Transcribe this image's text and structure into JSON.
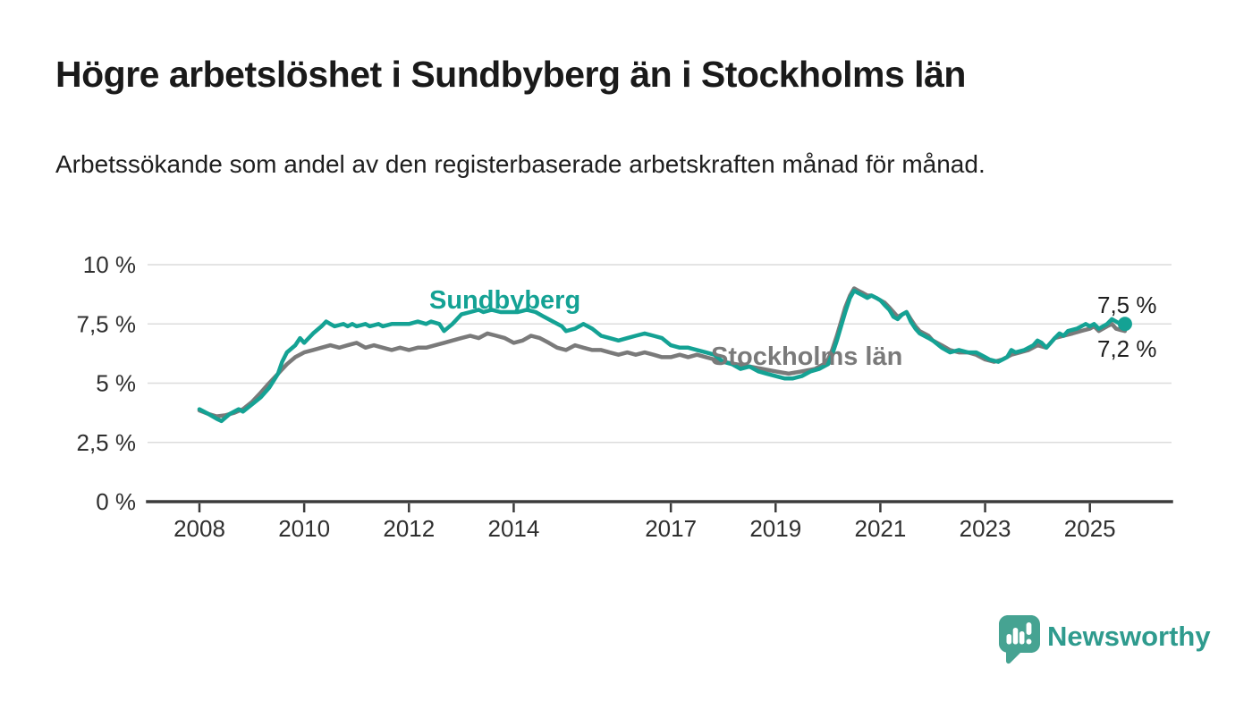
{
  "page": {
    "title": "Högre arbetslöshet i Sundbyberg än i Stockholms län",
    "subtitle": "Arbetssökande som andel av den registerbaserade arbetskraften månad för månad."
  },
  "logo": {
    "name": "Newsworthy",
    "icon": "newsworthy-speech-bubble-bar-chart-icon",
    "bubble_color": "#46a392",
    "text_color": "#2f9b8e"
  },
  "chart_data": {
    "type": "line",
    "title": "",
    "xlabel": "",
    "ylabel": "",
    "unit": "%",
    "grid": true,
    "x_axis": {
      "range": [
        2007.0,
        2026.6
      ],
      "ticks": [
        {
          "v": 2008,
          "label": "2008"
        },
        {
          "v": 2010,
          "label": "2010"
        },
        {
          "v": 2012,
          "label": "2012"
        },
        {
          "v": 2014,
          "label": "2014"
        },
        {
          "v": 2017,
          "label": "2017"
        },
        {
          "v": 2019,
          "label": "2019"
        },
        {
          "v": 2021,
          "label": "2021"
        },
        {
          "v": 2023,
          "label": "2023"
        },
        {
          "v": 2025,
          "label": "2025"
        }
      ]
    },
    "y_axis": {
      "range": [
        0,
        10
      ],
      "ticks": [
        {
          "v": 0,
          "label": "0 %"
        },
        {
          "v": 2.5,
          "label": "2,5 %"
        },
        {
          "v": 5,
          "label": "5 %"
        },
        {
          "v": 7.5,
          "label": "7,5 %"
        },
        {
          "v": 10,
          "label": "10 %"
        }
      ]
    },
    "colors": {
      "gridline": "#dcdcdc",
      "axis": "#3b3b3b",
      "tick_text": "#2f2f2f"
    },
    "series": [
      {
        "name": "Sundbyberg",
        "color": "#14a294",
        "end_label": "7,5 %",
        "end_value": 7.5,
        "end_dot": true,
        "points": [
          [
            2008.0,
            3.9
          ],
          [
            2008.17,
            3.7
          ],
          [
            2008.33,
            3.5
          ],
          [
            2008.42,
            3.4
          ],
          [
            2008.58,
            3.7
          ],
          [
            2008.75,
            3.9
          ],
          [
            2008.83,
            3.8
          ],
          [
            2009.0,
            4.1
          ],
          [
            2009.17,
            4.4
          ],
          [
            2009.33,
            4.8
          ],
          [
            2009.5,
            5.4
          ],
          [
            2009.58,
            5.9
          ],
          [
            2009.67,
            6.3
          ],
          [
            2009.83,
            6.6
          ],
          [
            2009.92,
            6.9
          ],
          [
            2010.0,
            6.7
          ],
          [
            2010.17,
            7.1
          ],
          [
            2010.33,
            7.4
          ],
          [
            2010.42,
            7.6
          ],
          [
            2010.5,
            7.5
          ],
          [
            2010.58,
            7.4
          ],
          [
            2010.75,
            7.5
          ],
          [
            2010.83,
            7.4
          ],
          [
            2010.92,
            7.5
          ],
          [
            2011.0,
            7.4
          ],
          [
            2011.17,
            7.5
          ],
          [
            2011.25,
            7.4
          ],
          [
            2011.42,
            7.5
          ],
          [
            2011.5,
            7.4
          ],
          [
            2011.67,
            7.5
          ],
          [
            2011.83,
            7.5
          ],
          [
            2012.0,
            7.5
          ],
          [
            2012.17,
            7.6
          ],
          [
            2012.33,
            7.5
          ],
          [
            2012.42,
            7.6
          ],
          [
            2012.58,
            7.5
          ],
          [
            2012.67,
            7.2
          ],
          [
            2012.83,
            7.5
          ],
          [
            2013.0,
            7.9
          ],
          [
            2013.17,
            8.0
          ],
          [
            2013.33,
            8.1
          ],
          [
            2013.42,
            8.0
          ],
          [
            2013.58,
            8.1
          ],
          [
            2013.75,
            8.0
          ],
          [
            2013.92,
            8.0
          ],
          [
            2014.08,
            8.0
          ],
          [
            2014.25,
            8.1
          ],
          [
            2014.42,
            8.0
          ],
          [
            2014.58,
            7.8
          ],
          [
            2014.75,
            7.6
          ],
          [
            2014.92,
            7.4
          ],
          [
            2015.0,
            7.2
          ],
          [
            2015.17,
            7.3
          ],
          [
            2015.33,
            7.5
          ],
          [
            2015.5,
            7.3
          ],
          [
            2015.67,
            7.0
          ],
          [
            2015.83,
            6.9
          ],
          [
            2016.0,
            6.8
          ],
          [
            2016.17,
            6.9
          ],
          [
            2016.33,
            7.0
          ],
          [
            2016.5,
            7.1
          ],
          [
            2016.67,
            7.0
          ],
          [
            2016.83,
            6.9
          ],
          [
            2017.0,
            6.6
          ],
          [
            2017.17,
            6.5
          ],
          [
            2017.33,
            6.5
          ],
          [
            2017.5,
            6.4
          ],
          [
            2017.67,
            6.3
          ],
          [
            2017.83,
            6.2
          ],
          [
            2018.0,
            5.9
          ],
          [
            2018.17,
            5.8
          ],
          [
            2018.33,
            5.6
          ],
          [
            2018.5,
            5.7
          ],
          [
            2018.67,
            5.5
          ],
          [
            2018.83,
            5.4
          ],
          [
            2019.0,
            5.3
          ],
          [
            2019.17,
            5.2
          ],
          [
            2019.33,
            5.2
          ],
          [
            2019.5,
            5.3
          ],
          [
            2019.67,
            5.5
          ],
          [
            2019.83,
            5.6
          ],
          [
            2020.0,
            5.8
          ],
          [
            2020.08,
            6.2
          ],
          [
            2020.17,
            6.8
          ],
          [
            2020.25,
            7.4
          ],
          [
            2020.33,
            8.0
          ],
          [
            2020.42,
            8.6
          ],
          [
            2020.5,
            8.9
          ],
          [
            2020.58,
            8.8
          ],
          [
            2020.67,
            8.7
          ],
          [
            2020.75,
            8.6
          ],
          [
            2020.83,
            8.7
          ],
          [
            2020.92,
            8.6
          ],
          [
            2021.0,
            8.5
          ],
          [
            2021.08,
            8.3
          ],
          [
            2021.17,
            8.1
          ],
          [
            2021.25,
            7.8
          ],
          [
            2021.33,
            7.7
          ],
          [
            2021.42,
            7.9
          ],
          [
            2021.5,
            8.0
          ],
          [
            2021.58,
            7.6
          ],
          [
            2021.67,
            7.3
          ],
          [
            2021.75,
            7.1
          ],
          [
            2021.92,
            6.9
          ],
          [
            2022.0,
            6.8
          ],
          [
            2022.17,
            6.5
          ],
          [
            2022.33,
            6.3
          ],
          [
            2022.5,
            6.4
          ],
          [
            2022.67,
            6.3
          ],
          [
            2022.83,
            6.3
          ],
          [
            2023.0,
            6.1
          ],
          [
            2023.08,
            6.0
          ],
          [
            2023.25,
            5.9
          ],
          [
            2023.42,
            6.1
          ],
          [
            2023.5,
            6.4
          ],
          [
            2023.58,
            6.3
          ],
          [
            2023.75,
            6.4
          ],
          [
            2023.92,
            6.6
          ],
          [
            2024.0,
            6.8
          ],
          [
            2024.08,
            6.7
          ],
          [
            2024.17,
            6.5
          ],
          [
            2024.33,
            6.9
          ],
          [
            2024.42,
            7.1
          ],
          [
            2024.5,
            7.0
          ],
          [
            2024.58,
            7.2
          ],
          [
            2024.75,
            7.3
          ],
          [
            2024.92,
            7.5
          ],
          [
            2025.0,
            7.4
          ],
          [
            2025.08,
            7.5
          ],
          [
            2025.17,
            7.3
          ],
          [
            2025.33,
            7.5
          ],
          [
            2025.42,
            7.7
          ],
          [
            2025.5,
            7.6
          ],
          [
            2025.58,
            7.5
          ],
          [
            2025.67,
            7.5
          ]
        ]
      },
      {
        "name": "Stockholms län",
        "color": "#7a7a7a",
        "end_label": "7,2 %",
        "end_value": 7.2,
        "end_dot": false,
        "points": [
          [
            2008.0,
            3.85
          ],
          [
            2008.17,
            3.7
          ],
          [
            2008.33,
            3.6
          ],
          [
            2008.5,
            3.65
          ],
          [
            2008.67,
            3.75
          ],
          [
            2008.83,
            3.9
          ],
          [
            2009.0,
            4.2
          ],
          [
            2009.17,
            4.6
          ],
          [
            2009.33,
            5.0
          ],
          [
            2009.5,
            5.4
          ],
          [
            2009.67,
            5.8
          ],
          [
            2009.83,
            6.1
          ],
          [
            2010.0,
            6.3
          ],
          [
            2010.17,
            6.4
          ],
          [
            2010.33,
            6.5
          ],
          [
            2010.5,
            6.6
          ],
          [
            2010.67,
            6.5
          ],
          [
            2010.83,
            6.6
          ],
          [
            2011.0,
            6.7
          ],
          [
            2011.17,
            6.5
          ],
          [
            2011.33,
            6.6
          ],
          [
            2011.5,
            6.5
          ],
          [
            2011.67,
            6.4
          ],
          [
            2011.83,
            6.5
          ],
          [
            2012.0,
            6.4
          ],
          [
            2012.17,
            6.5
          ],
          [
            2012.33,
            6.5
          ],
          [
            2012.5,
            6.6
          ],
          [
            2012.67,
            6.7
          ],
          [
            2012.83,
            6.8
          ],
          [
            2013.0,
            6.9
          ],
          [
            2013.17,
            7.0
          ],
          [
            2013.33,
            6.9
          ],
          [
            2013.5,
            7.1
          ],
          [
            2013.67,
            7.0
          ],
          [
            2013.83,
            6.9
          ],
          [
            2014.0,
            6.7
          ],
          [
            2014.17,
            6.8
          ],
          [
            2014.33,
            7.0
          ],
          [
            2014.5,
            6.9
          ],
          [
            2014.67,
            6.7
          ],
          [
            2014.83,
            6.5
          ],
          [
            2015.0,
            6.4
          ],
          [
            2015.17,
            6.6
          ],
          [
            2015.33,
            6.5
          ],
          [
            2015.5,
            6.4
          ],
          [
            2015.67,
            6.4
          ],
          [
            2015.83,
            6.3
          ],
          [
            2016.0,
            6.2
          ],
          [
            2016.17,
            6.3
          ],
          [
            2016.33,
            6.2
          ],
          [
            2016.5,
            6.3
          ],
          [
            2016.67,
            6.2
          ],
          [
            2016.83,
            6.1
          ],
          [
            2017.0,
            6.1
          ],
          [
            2017.17,
            6.2
          ],
          [
            2017.33,
            6.1
          ],
          [
            2017.5,
            6.2
          ],
          [
            2017.67,
            6.1
          ],
          [
            2017.83,
            6.0
          ],
          [
            2018.0,
            5.9
          ],
          [
            2018.25,
            5.8
          ],
          [
            2018.5,
            5.7
          ],
          [
            2018.75,
            5.6
          ],
          [
            2019.0,
            5.5
          ],
          [
            2019.25,
            5.4
          ],
          [
            2019.5,
            5.5
          ],
          [
            2019.75,
            5.6
          ],
          [
            2019.92,
            5.8
          ],
          [
            2020.0,
            6.0
          ],
          [
            2020.08,
            6.4
          ],
          [
            2020.17,
            7.0
          ],
          [
            2020.25,
            7.6
          ],
          [
            2020.33,
            8.2
          ],
          [
            2020.42,
            8.7
          ],
          [
            2020.5,
            9.0
          ],
          [
            2020.58,
            8.9
          ],
          [
            2020.67,
            8.8
          ],
          [
            2020.75,
            8.7
          ],
          [
            2020.83,
            8.7
          ],
          [
            2020.92,
            8.6
          ],
          [
            2021.0,
            8.5
          ],
          [
            2021.08,
            8.4
          ],
          [
            2021.17,
            8.2
          ],
          [
            2021.25,
            8.0
          ],
          [
            2021.33,
            7.8
          ],
          [
            2021.42,
            7.9
          ],
          [
            2021.5,
            8.0
          ],
          [
            2021.58,
            7.7
          ],
          [
            2021.67,
            7.4
          ],
          [
            2021.75,
            7.2
          ],
          [
            2021.92,
            7.0
          ],
          [
            2022.0,
            6.8
          ],
          [
            2022.17,
            6.6
          ],
          [
            2022.33,
            6.4
          ],
          [
            2022.5,
            6.3
          ],
          [
            2022.67,
            6.3
          ],
          [
            2022.83,
            6.2
          ],
          [
            2023.0,
            6.0
          ],
          [
            2023.17,
            5.9
          ],
          [
            2023.33,
            6.0
          ],
          [
            2023.5,
            6.2
          ],
          [
            2023.67,
            6.3
          ],
          [
            2023.83,
            6.4
          ],
          [
            2024.0,
            6.6
          ],
          [
            2024.17,
            6.5
          ],
          [
            2024.33,
            6.9
          ],
          [
            2024.5,
            7.0
          ],
          [
            2024.67,
            7.1
          ],
          [
            2024.83,
            7.2
          ],
          [
            2025.0,
            7.3
          ],
          [
            2025.08,
            7.4
          ],
          [
            2025.17,
            7.2
          ],
          [
            2025.33,
            7.4
          ],
          [
            2025.42,
            7.5
          ],
          [
            2025.5,
            7.3
          ],
          [
            2025.58,
            7.25
          ],
          [
            2025.67,
            7.2
          ]
        ]
      }
    ],
    "legend_position": "inline-labels"
  }
}
